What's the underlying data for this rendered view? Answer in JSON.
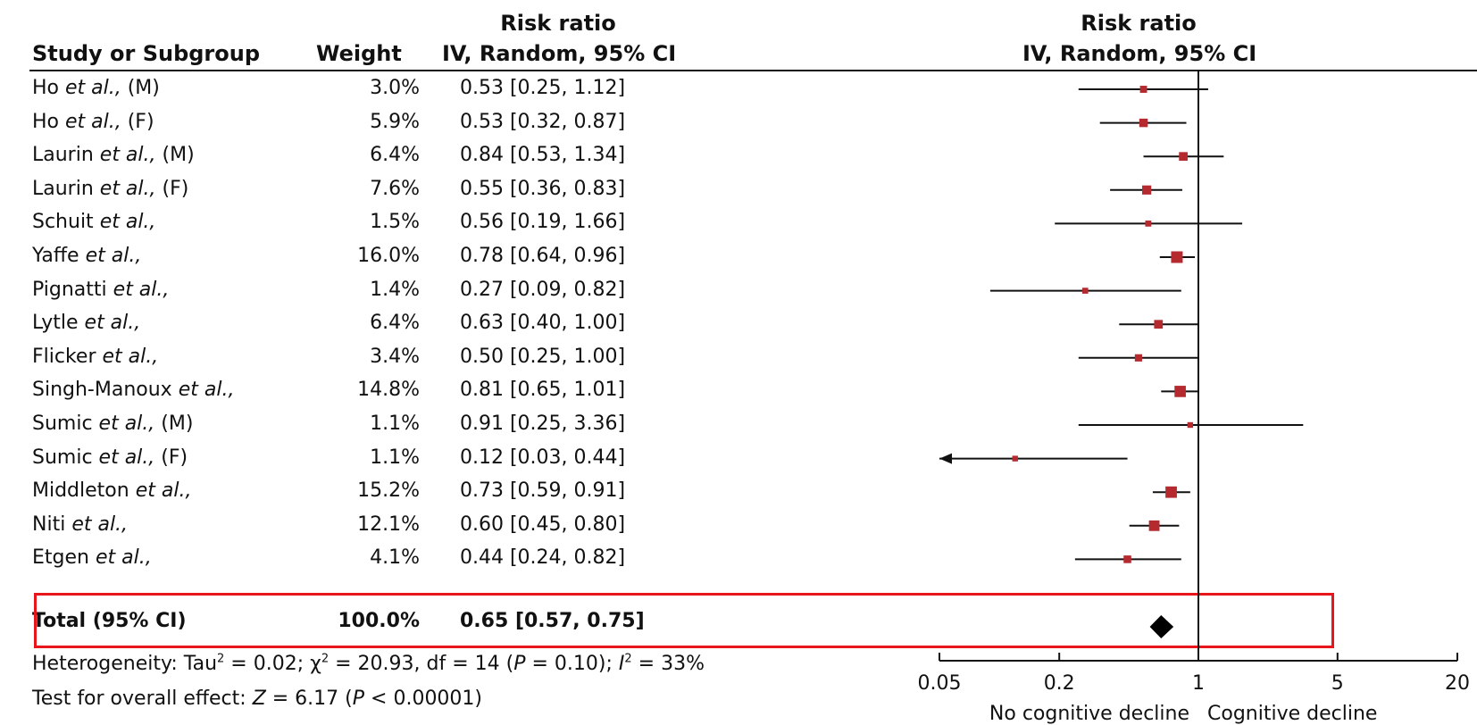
{
  "header": {
    "col_study": "Study or Subgroup",
    "col_weight": "Weight",
    "col_rr_top": "Risk ratio",
    "col_rr_bottom": "IV, Random, 95% CI",
    "plot_rr_top": "Risk ratio",
    "plot_rr_bottom": "IV, Random, 95% CI"
  },
  "studies": [
    {
      "name": "Ho",
      "etal": "et al.,",
      "suffix": " (M)",
      "weight": "3.0%",
      "ci_text": "0.53 [0.25, 1.12]",
      "rr": 0.53,
      "lo": 0.25,
      "hi": 1.12
    },
    {
      "name": "Ho",
      "etal": "et al.,",
      "suffix": " (F)",
      "weight": "5.9%",
      "ci_text": "0.53 [0.32, 0.87]",
      "rr": 0.53,
      "lo": 0.32,
      "hi": 0.87
    },
    {
      "name": "Laurin",
      "etal": "et al.,",
      "suffix": " (M)",
      "weight": "6.4%",
      "ci_text": "0.84 [0.53, 1.34]",
      "rr": 0.84,
      "lo": 0.53,
      "hi": 1.34
    },
    {
      "name": "Laurin",
      "etal": "et al.,",
      "suffix": " (F)",
      "weight": "7.6%",
      "ci_text": "0.55 [0.36, 0.83]",
      "rr": 0.55,
      "lo": 0.36,
      "hi": 0.83
    },
    {
      "name": "Schuit",
      "etal": "et al.,",
      "suffix": "",
      "weight": "1.5%",
      "ci_text": "0.56 [0.19, 1.66]",
      "rr": 0.56,
      "lo": 0.19,
      "hi": 1.66
    },
    {
      "name": "Yaffe",
      "etal": "et al.,",
      "suffix": "",
      "weight": "16.0%",
      "ci_text": "0.78 [0.64, 0.96]",
      "rr": 0.78,
      "lo": 0.64,
      "hi": 0.96
    },
    {
      "name": "Pignatti",
      "etal": "et al.,",
      "suffix": "",
      "weight": "1.4%",
      "ci_text": "0.27 [0.09, 0.82]",
      "rr": 0.27,
      "lo": 0.09,
      "hi": 0.82
    },
    {
      "name": "Lytle",
      "etal": "et al.,",
      "suffix": "",
      "weight": "6.4%",
      "ci_text": "0.63 [0.40, 1.00]",
      "rr": 0.63,
      "lo": 0.4,
      "hi": 1.0
    },
    {
      "name": "Flicker",
      "etal": "et al.,",
      "suffix": "",
      "weight": "3.4%",
      "ci_text": "0.50 [0.25, 1.00]",
      "rr": 0.5,
      "lo": 0.25,
      "hi": 1.0
    },
    {
      "name": "Singh-Manoux",
      "etal": "et al.,",
      "suffix": "",
      "weight": "14.8%",
      "ci_text": "0.81 [0.65, 1.01]",
      "rr": 0.81,
      "lo": 0.65,
      "hi": 1.01
    },
    {
      "name": "Sumic",
      "etal": "et al.,",
      "suffix": " (M)",
      "weight": "1.1%",
      "ci_text": "0.91 [0.25, 3.36]",
      "rr": 0.91,
      "lo": 0.25,
      "hi": 3.36
    },
    {
      "name": "Sumic",
      "etal": "et al.,",
      "suffix": " (F)",
      "weight": "1.1%",
      "ci_text": "0.12 [0.03, 0.44]",
      "rr": 0.12,
      "lo": 0.03,
      "hi": 0.44
    },
    {
      "name": "Middleton",
      "etal": "et al.,",
      "suffix": "",
      "weight": "15.2%",
      "ci_text": "0.73 [0.59, 0.91]",
      "rr": 0.73,
      "lo": 0.59,
      "hi": 0.91
    },
    {
      "name": "Niti",
      "etal": "et al.,",
      "suffix": "",
      "weight": "12.1%",
      "ci_text": "0.60 [0.45, 0.80]",
      "rr": 0.6,
      "lo": 0.45,
      "hi": 0.8
    },
    {
      "name": "Etgen",
      "etal": "et al.,",
      "suffix": "",
      "weight": "4.1%",
      "ci_text": "0.44 [0.24, 0.82]",
      "rr": 0.44,
      "lo": 0.24,
      "hi": 0.82
    }
  ],
  "total": {
    "label": "Total (95% CI)",
    "weight": "100.0%",
    "ci_text": "0.65 [0.57, 0.75]",
    "rr": 0.65,
    "lo": 0.57,
    "hi": 0.75
  },
  "footnotes": {
    "heterogeneity": {
      "prefix": "Heterogeneity: Tau",
      "sup1": "2",
      "part2": " = 0.02; χ",
      "sup2": "2",
      "part3": " = 20.93, df = 14 (",
      "p_letter": "P",
      "part4": " = 0.10); ",
      "i_letter": "I",
      "sup3": "2",
      "part5": " = 33%"
    },
    "overall": {
      "prefix": "Test for overall effect: ",
      "z_letter": "Z",
      "part2": " = 6.17 (",
      "p_letter": "P",
      "part3": " < 0.00001)"
    }
  },
  "axis_labels": {
    "left": "No cognitive decline",
    "right": "Cognitive decline"
  },
  "colors": {
    "marker": "#b42a2e",
    "highlight": "#e8161b",
    "line": "#111111"
  },
  "chart_data": {
    "type": "forest",
    "scale": "log",
    "xlim": [
      0.05,
      20
    ],
    "ticks": [
      0.05,
      0.2,
      1,
      5,
      20
    ],
    "tick_labels": [
      "0.05",
      "0.2",
      "1",
      "5",
      "20"
    ],
    "reference_line": 1,
    "legend": "none"
  }
}
